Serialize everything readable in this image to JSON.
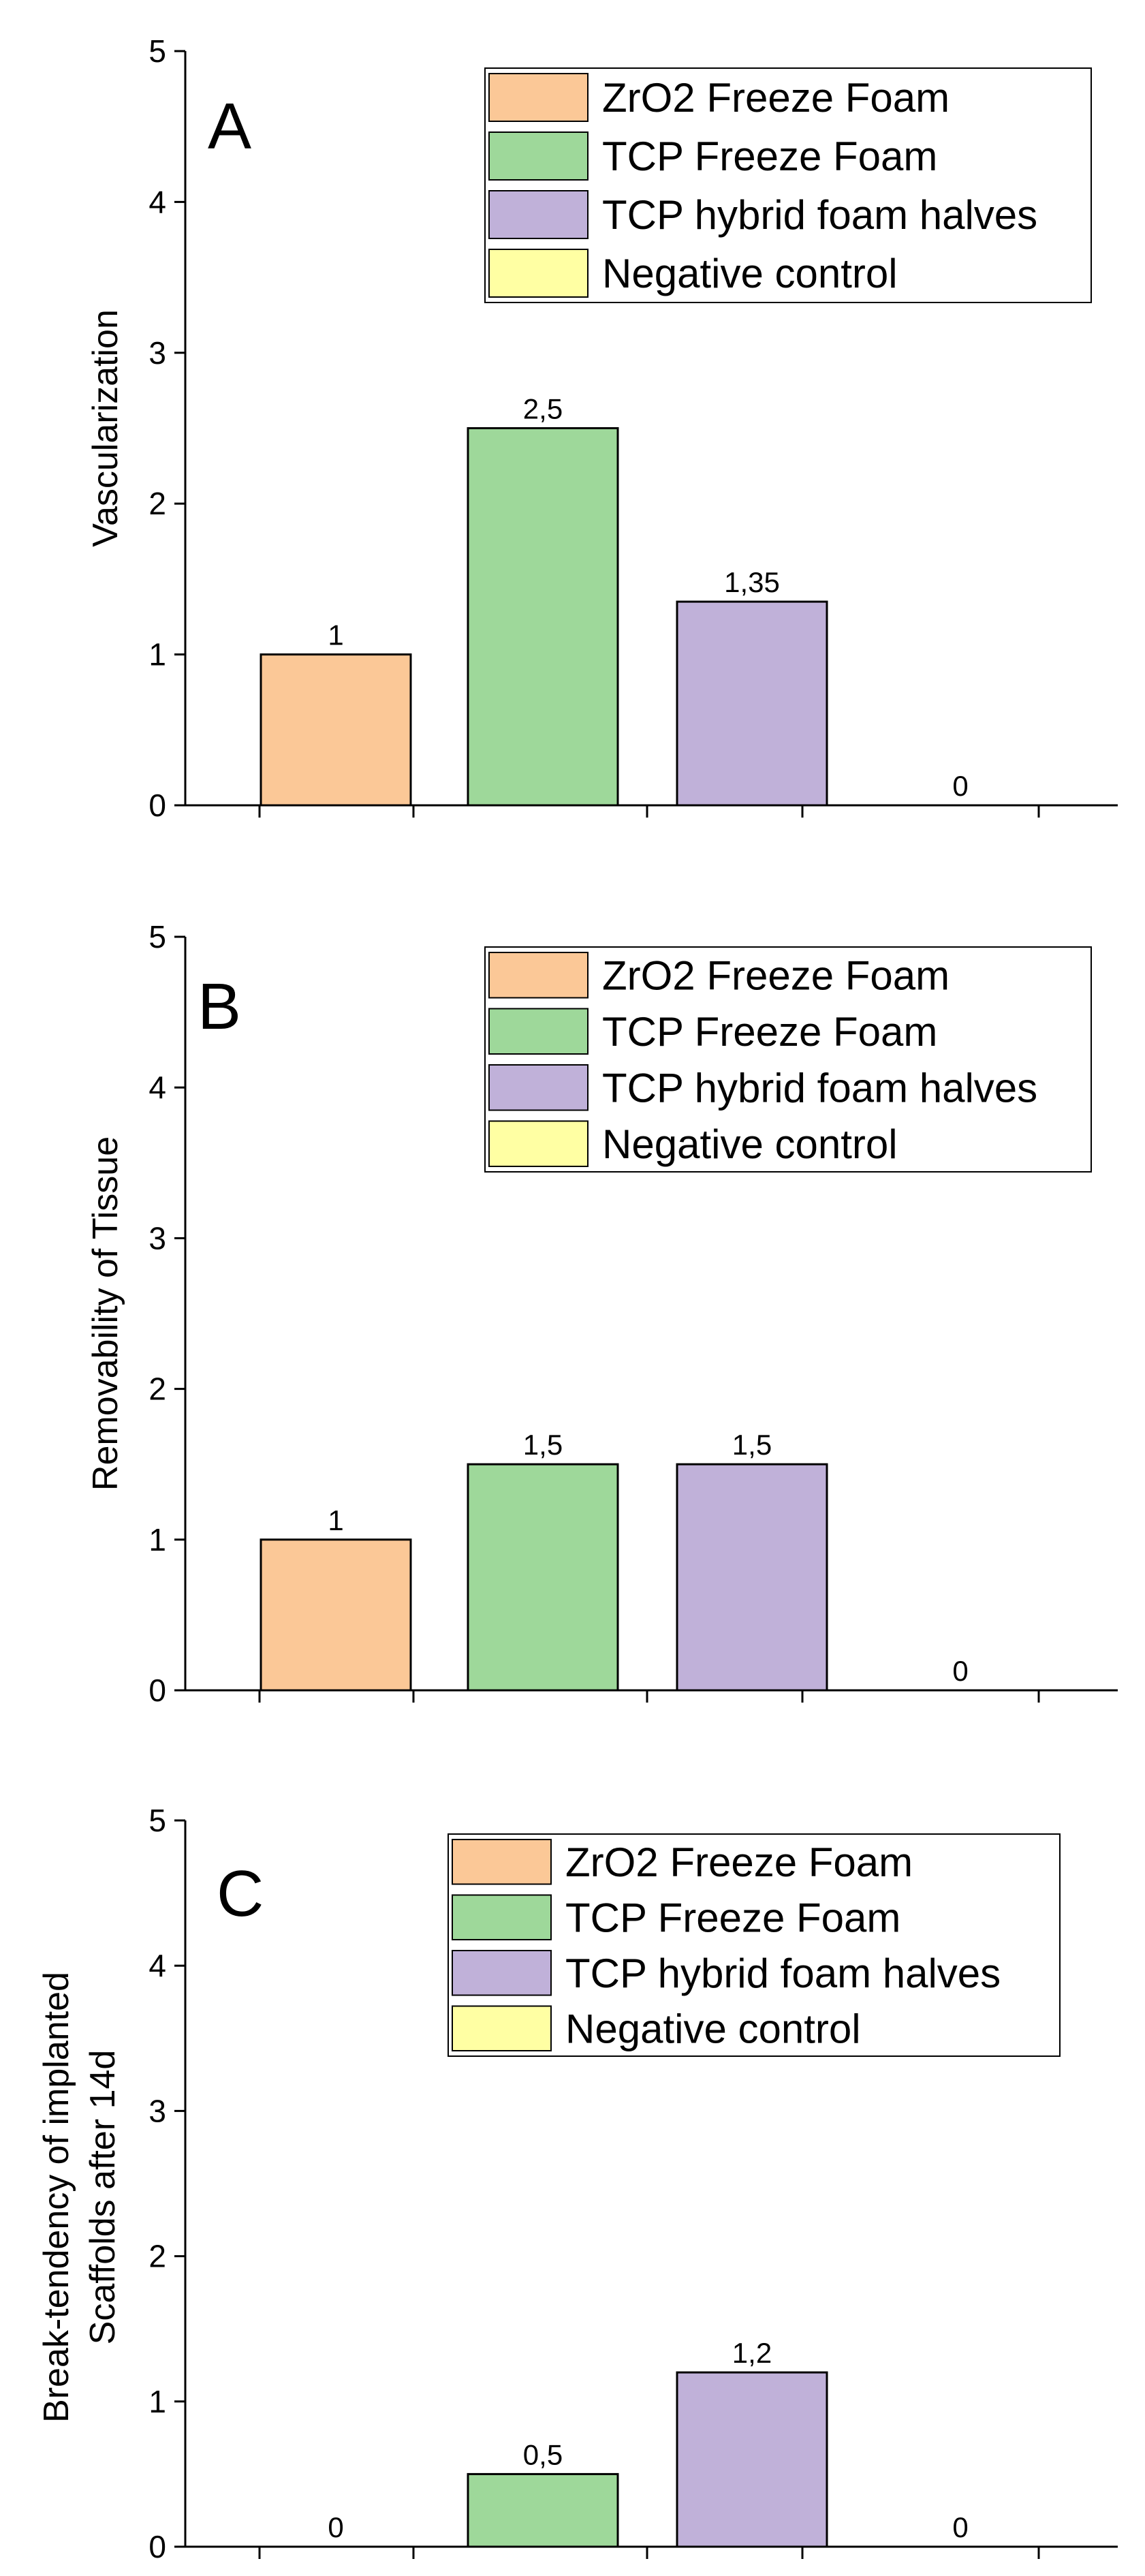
{
  "chart_data": [
    {
      "type": "bar",
      "panel_label": "A",
      "ylabel": [
        "Vascularization"
      ],
      "xlabel": "",
      "ylim": [
        0,
        5
      ],
      "yticks": [
        0,
        1,
        2,
        3,
        4,
        5
      ],
      "series": [
        {
          "name": "ZrO2 Freeze Foam",
          "value": 1,
          "label": "1",
          "color": "#fbc897"
        },
        {
          "name": "TCP Freeze Foam",
          "value": 2.5,
          "label": "2,5",
          "color": "#9ed89a"
        },
        {
          "name": "TCP hybrid foam halves",
          "value": 1.35,
          "label": "1,35",
          "color": "#c0b1d9"
        },
        {
          "name": "Negative control",
          "value": 0,
          "label": "0",
          "color": "#ffffa3"
        }
      ],
      "legend_position": "top-right"
    },
    {
      "type": "bar",
      "panel_label": "B",
      "ylabel": [
        "Removability of Tissue"
      ],
      "xlabel": "",
      "ylim": [
        0,
        5
      ],
      "yticks": [
        0,
        1,
        2,
        3,
        4,
        5
      ],
      "series": [
        {
          "name": "ZrO2 Freeze Foam",
          "value": 1,
          "label": "1",
          "color": "#fbc897"
        },
        {
          "name": "TCP Freeze Foam",
          "value": 1.5,
          "label": "1,5",
          "color": "#9ed89a"
        },
        {
          "name": "TCP hybrid foam halves",
          "value": 1.5,
          "label": "1,5",
          "color": "#c0b1d9"
        },
        {
          "name": "Negative control",
          "value": 0,
          "label": "0",
          "color": "#ffffa3"
        }
      ],
      "legend_position": "top-right"
    },
    {
      "type": "bar",
      "panel_label": "C",
      "ylabel": [
        "Break-tendency of implanted",
        "Scaffolds after 14d"
      ],
      "xlabel": "",
      "ylim": [
        0,
        5
      ],
      "yticks": [
        0,
        1,
        2,
        3,
        4,
        5
      ],
      "series": [
        {
          "name": "ZrO2 Freeze Foam",
          "value": 0,
          "label": "0",
          "color": "#fbc897"
        },
        {
          "name": "TCP Freeze Foam",
          "value": 0.5,
          "label": "0,5",
          "color": "#9ed89a"
        },
        {
          "name": "TCP hybrid foam halves",
          "value": 1.2,
          "label": "1,2",
          "color": "#c0b1d9"
        },
        {
          "name": "Negative control",
          "value": 0,
          "label": "0",
          "color": "#ffffa3"
        }
      ],
      "legend_position": "top-right"
    }
  ]
}
